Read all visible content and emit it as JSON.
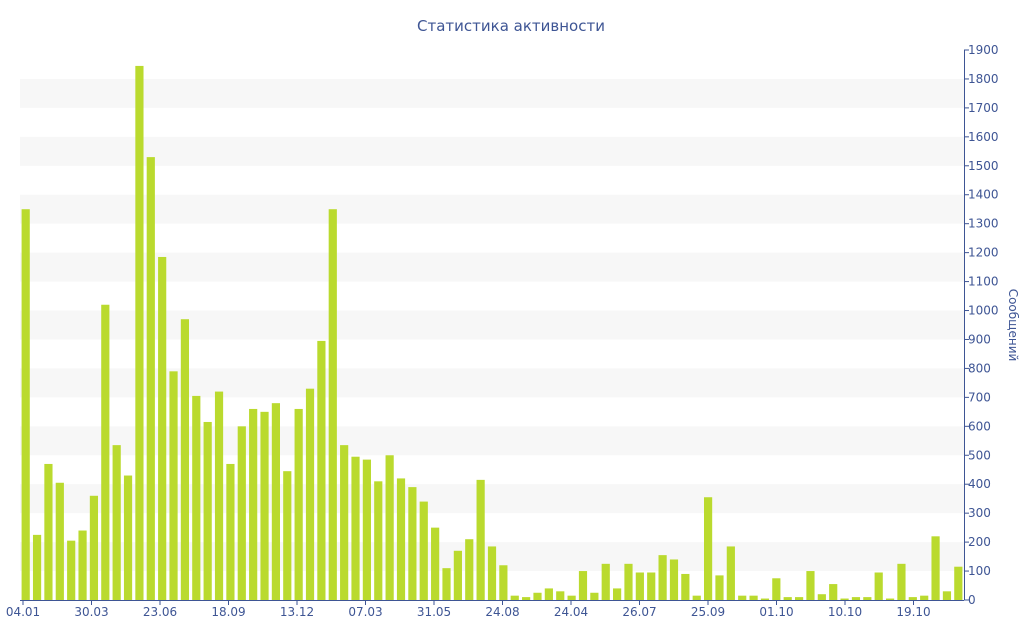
{
  "chart_data": {
    "type": "bar",
    "title": "Статистика активности",
    "ylabel": "Сообщений",
    "y_axis_side": "right",
    "ylim": [
      0,
      1900
    ],
    "y_ticks": [
      0,
      100,
      200,
      300,
      400,
      500,
      600,
      700,
      800,
      900,
      1000,
      1100,
      1200,
      1300,
      1400,
      1500,
      1600,
      1700,
      1800,
      1900
    ],
    "x_tick_labels": [
      "04.01",
      "30.03",
      "23.06",
      "18.09",
      "13.12",
      "07.03",
      "31.05",
      "24.08",
      "24.04",
      "26.07",
      "25.09",
      "01.10",
      "10.10",
      "19.10"
    ],
    "bar_color": "#bada2e",
    "band_color": "#f7f7f7",
    "values": [
      1350,
      225,
      470,
      405,
      205,
      240,
      360,
      1020,
      535,
      430,
      1845,
      1530,
      1185,
      790,
      970,
      705,
      615,
      720,
      470,
      600,
      660,
      650,
      680,
      445,
      660,
      730,
      895,
      1350,
      535,
      495,
      485,
      410,
      500,
      420,
      390,
      340,
      250,
      110,
      170,
      210,
      415,
      185,
      120,
      15,
      10,
      25,
      40,
      30,
      15,
      100,
      25,
      125,
      40,
      125,
      95,
      95,
      155,
      140,
      90,
      15,
      355,
      85,
      185,
      15,
      15,
      5,
      75,
      10,
      10,
      100,
      20,
      55,
      5,
      10,
      10,
      95,
      5,
      125,
      10,
      15,
      220,
      30,
      115
    ]
  }
}
